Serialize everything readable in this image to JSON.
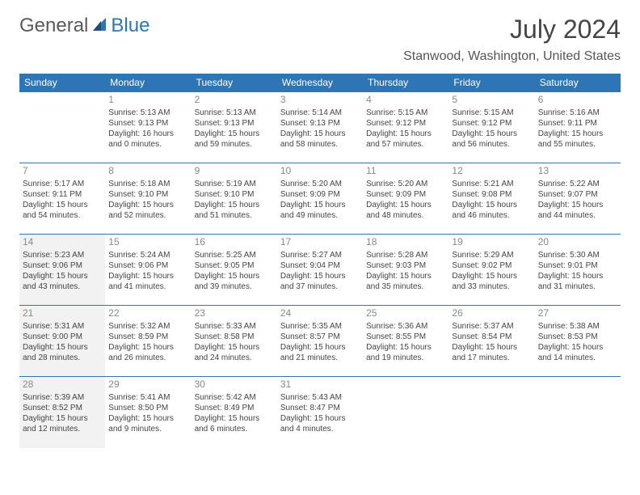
{
  "logo": {
    "text1": "General",
    "text2": "Blue"
  },
  "title": "July 2024",
  "location": "Stanwood, Washington, United States",
  "colors": {
    "header_bg": "#2e75b6",
    "header_text": "#ffffff",
    "border": "#2e75b6",
    "highlight": "#f2f2f2",
    "daynum": "#888888",
    "body_text": "#444444"
  },
  "weekdays": [
    "Sunday",
    "Monday",
    "Tuesday",
    "Wednesday",
    "Thursday",
    "Friday",
    "Saturday"
  ],
  "weeks": [
    [
      {
        "blank": true
      },
      {
        "n": "1",
        "sr": "5:13 AM",
        "ss": "9:13 PM",
        "dl": "16 hours and 0 minutes."
      },
      {
        "n": "2",
        "sr": "5:13 AM",
        "ss": "9:13 PM",
        "dl": "15 hours and 59 minutes."
      },
      {
        "n": "3",
        "sr": "5:14 AM",
        "ss": "9:13 PM",
        "dl": "15 hours and 58 minutes."
      },
      {
        "n": "4",
        "sr": "5:15 AM",
        "ss": "9:12 PM",
        "dl": "15 hours and 57 minutes."
      },
      {
        "n": "5",
        "sr": "5:15 AM",
        "ss": "9:12 PM",
        "dl": "15 hours and 56 minutes."
      },
      {
        "n": "6",
        "sr": "5:16 AM",
        "ss": "9:11 PM",
        "dl": "15 hours and 55 minutes."
      }
    ],
    [
      {
        "n": "7",
        "sr": "5:17 AM",
        "ss": "9:11 PM",
        "dl": "15 hours and 54 minutes."
      },
      {
        "n": "8",
        "sr": "5:18 AM",
        "ss": "9:10 PM",
        "dl": "15 hours and 52 minutes."
      },
      {
        "n": "9",
        "sr": "5:19 AM",
        "ss": "9:10 PM",
        "dl": "15 hours and 51 minutes."
      },
      {
        "n": "10",
        "sr": "5:20 AM",
        "ss": "9:09 PM",
        "dl": "15 hours and 49 minutes."
      },
      {
        "n": "11",
        "sr": "5:20 AM",
        "ss": "9:09 PM",
        "dl": "15 hours and 48 minutes."
      },
      {
        "n": "12",
        "sr": "5:21 AM",
        "ss": "9:08 PM",
        "dl": "15 hours and 46 minutes."
      },
      {
        "n": "13",
        "sr": "5:22 AM",
        "ss": "9:07 PM",
        "dl": "15 hours and 44 minutes."
      }
    ],
    [
      {
        "n": "14",
        "sr": "5:23 AM",
        "ss": "9:06 PM",
        "dl": "15 hours and 43 minutes.",
        "hl": true
      },
      {
        "n": "15",
        "sr": "5:24 AM",
        "ss": "9:06 PM",
        "dl": "15 hours and 41 minutes."
      },
      {
        "n": "16",
        "sr": "5:25 AM",
        "ss": "9:05 PM",
        "dl": "15 hours and 39 minutes."
      },
      {
        "n": "17",
        "sr": "5:27 AM",
        "ss": "9:04 PM",
        "dl": "15 hours and 37 minutes."
      },
      {
        "n": "18",
        "sr": "5:28 AM",
        "ss": "9:03 PM",
        "dl": "15 hours and 35 minutes."
      },
      {
        "n": "19",
        "sr": "5:29 AM",
        "ss": "9:02 PM",
        "dl": "15 hours and 33 minutes."
      },
      {
        "n": "20",
        "sr": "5:30 AM",
        "ss": "9:01 PM",
        "dl": "15 hours and 31 minutes."
      }
    ],
    [
      {
        "n": "21",
        "sr": "5:31 AM",
        "ss": "9:00 PM",
        "dl": "15 hours and 28 minutes.",
        "hl": true
      },
      {
        "n": "22",
        "sr": "5:32 AM",
        "ss": "8:59 PM",
        "dl": "15 hours and 26 minutes."
      },
      {
        "n": "23",
        "sr": "5:33 AM",
        "ss": "8:58 PM",
        "dl": "15 hours and 24 minutes."
      },
      {
        "n": "24",
        "sr": "5:35 AM",
        "ss": "8:57 PM",
        "dl": "15 hours and 21 minutes."
      },
      {
        "n": "25",
        "sr": "5:36 AM",
        "ss": "8:55 PM",
        "dl": "15 hours and 19 minutes."
      },
      {
        "n": "26",
        "sr": "5:37 AM",
        "ss": "8:54 PM",
        "dl": "15 hours and 17 minutes."
      },
      {
        "n": "27",
        "sr": "5:38 AM",
        "ss": "8:53 PM",
        "dl": "15 hours and 14 minutes."
      }
    ],
    [
      {
        "n": "28",
        "sr": "5:39 AM",
        "ss": "8:52 PM",
        "dl": "15 hours and 12 minutes.",
        "hl": true
      },
      {
        "n": "29",
        "sr": "5:41 AM",
        "ss": "8:50 PM",
        "dl": "15 hours and 9 minutes."
      },
      {
        "n": "30",
        "sr": "5:42 AM",
        "ss": "8:49 PM",
        "dl": "15 hours and 6 minutes."
      },
      {
        "n": "31",
        "sr": "5:43 AM",
        "ss": "8:47 PM",
        "dl": "15 hours and 4 minutes."
      },
      {
        "blank": true
      },
      {
        "blank": true
      },
      {
        "blank": true
      }
    ]
  ]
}
